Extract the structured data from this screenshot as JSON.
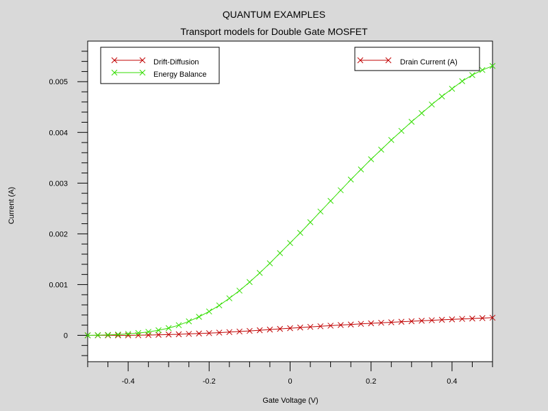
{
  "chart_data": {
    "type": "line",
    "title": "QUANTUM EXAMPLES",
    "subtitle": "Transport models for Double Gate MOSFET",
    "xlabel": "Gate Voltage (V)",
    "ylabel": "Current (A)",
    "xlim": [
      -0.5,
      0.5
    ],
    "ylim": [
      -0.00052,
      0.0058
    ],
    "x_ticks": [
      -0.4,
      -0.2,
      0,
      0.2,
      0.4
    ],
    "x_tick_labels": [
      "-0.4",
      "-0.2",
      "0",
      "0.2",
      "0.4"
    ],
    "y_ticks": [
      0,
      0.001,
      0.002,
      0.003,
      0.004,
      0.005
    ],
    "y_tick_labels": [
      "0",
      "0.001",
      "0.002",
      "0.003",
      "0.004",
      "0.005"
    ],
    "grid": false,
    "legends": [
      {
        "placement": "top-left",
        "entries": [
          {
            "label": "Drift-Diffusion",
            "color": "#c00000"
          },
          {
            "label": "Energy Balance",
            "color": "#33dd00"
          }
        ]
      },
      {
        "placement": "top-right",
        "entries": [
          {
            "label": "Drain Current (A)",
            "color": "#c00000"
          }
        ]
      }
    ],
    "x": [
      -0.5,
      -0.475,
      -0.45,
      -0.425,
      -0.4,
      -0.375,
      -0.35,
      -0.325,
      -0.3,
      -0.275,
      -0.25,
      -0.225,
      -0.2,
      -0.175,
      -0.15,
      -0.125,
      -0.1,
      -0.075,
      -0.05,
      -0.025,
      0,
      0.025,
      0.05,
      0.075,
      0.1,
      0.125,
      0.15,
      0.175,
      0.2,
      0.225,
      0.25,
      0.275,
      0.3,
      0.325,
      0.35,
      0.375,
      0.4,
      0.425,
      0.45,
      0.475,
      0.5
    ],
    "series": [
      {
        "name": "Drift-Diffusion",
        "color": "#c00000",
        "values": [
          0.0,
          0.0,
          0.0,
          0.0,
          0.0,
          2e-06,
          5e-06,
          1e-05,
          1.5e-05,
          2e-05,
          2.8e-05,
          3.5e-05,
          4.3e-05,
          5.3e-05,
          6.3e-05,
          7.5e-05,
          8.7e-05,
          0.0001,
          0.000113,
          0.000127,
          0.00014,
          0.000153,
          0.000166,
          0.000178,
          0.00019,
          0.000202,
          0.000213,
          0.000225,
          0.000236,
          0.000247,
          0.000257,
          0.000267,
          0.000277,
          0.000287,
          0.000296,
          0.000305,
          0.000314,
          0.000323,
          0.000331,
          0.000339,
          0.000347
        ]
      },
      {
        "name": "Energy Balance",
        "color": "#33dd00",
        "values": [
          0.0,
          3e-06,
          8e-06,
          1.5e-05,
          2.8e-05,
          4.5e-05,
          6.8e-05,
          0.0001,
          0.000142,
          0.0002,
          0.000275,
          0.000365,
          0.00047,
          0.00059,
          0.00073,
          0.00088,
          0.00105,
          0.00123,
          0.00142,
          0.00162,
          0.00182,
          0.00202,
          0.00223,
          0.00244,
          0.00265,
          0.00286,
          0.00307,
          0.00327,
          0.00347,
          0.00366,
          0.00385,
          0.00403,
          0.00421,
          0.00438,
          0.00455,
          0.00471,
          0.00486,
          0.00501,
          0.00513,
          0.00523,
          0.00531
        ]
      }
    ]
  }
}
